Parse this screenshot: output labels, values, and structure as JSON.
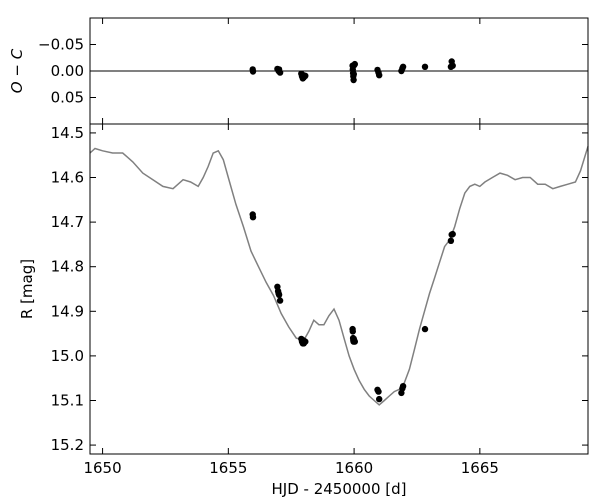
{
  "chart_data": [
    {
      "panel": "top",
      "type": "scatter",
      "title": "",
      "xlabel": "",
      "ylabel": "O − C",
      "xlim": [
        1649.5,
        1669.3
      ],
      "ylim": [
        0.1,
        -0.1
      ],
      "y_inverted": true,
      "yticks": [
        -0.05,
        0.0,
        0.05
      ],
      "ytick_labels": [
        "−0.05",
        "0.00",
        "0.05"
      ],
      "x_tick_labels_shown": false,
      "reference_line": {
        "y": 0.0
      },
      "grid": false,
      "legend": "none",
      "series": [
        {
          "marker_color": "#000000",
          "points": [
            [
              1655.97,
              -0.003
            ],
            [
              1655.98,
              0.001
            ],
            [
              1656.95,
              -0.004
            ],
            [
              1656.98,
              -0.002
            ],
            [
              1657.0,
              0.0
            ],
            [
              1657.02,
              -0.003
            ],
            [
              1657.06,
              0.003
            ],
            [
              1657.9,
              0.005
            ],
            [
              1657.93,
              0.01
            ],
            [
              1657.96,
              0.014
            ],
            [
              1657.98,
              0.008
            ],
            [
              1658.0,
              0.012
            ],
            [
              1658.02,
              0.01
            ],
            [
              1658.06,
              0.009
            ],
            [
              1659.94,
              -0.01
            ],
            [
              1659.95,
              -0.003
            ],
            [
              1659.96,
              0.004
            ],
            [
              1659.97,
              0.01
            ],
            [
              1659.98,
              0.017
            ],
            [
              1659.99,
              0.006
            ],
            [
              1660.0,
              -0.011
            ],
            [
              1660.03,
              -0.013
            ],
            [
              1660.93,
              -0.002
            ],
            [
              1660.97,
              0.003
            ],
            [
              1661.0,
              0.008
            ],
            [
              1661.88,
              0.0
            ],
            [
              1661.92,
              -0.005
            ],
            [
              1661.95,
              -0.008
            ],
            [
              1662.82,
              -0.008
            ],
            [
              1663.85,
              -0.008
            ],
            [
              1663.88,
              -0.018
            ],
            [
              1663.92,
              -0.01
            ]
          ]
        }
      ]
    },
    {
      "panel": "bottom",
      "type": "line",
      "title": "",
      "xlabel": "HJD - 2450000 [d]",
      "ylabel": "R [mag]",
      "xlim": [
        1649.5,
        1669.3
      ],
      "ylim": [
        15.22,
        14.48
      ],
      "y_inverted": true,
      "xticks": [
        1650,
        1655,
        1660,
        1665
      ],
      "xtick_labels": [
        "1650",
        "1655",
        "1660",
        "1665"
      ],
      "yticks": [
        14.5,
        14.6,
        14.7,
        14.8,
        14.9,
        15.0,
        15.1,
        15.2
      ],
      "ytick_labels": [
        "14.5",
        "14.6",
        "14.7",
        "14.8",
        "14.9",
        "15.0",
        "15.1",
        "15.2"
      ],
      "grid": false,
      "legend": "none",
      "series": [
        {
          "kind": "model-curve",
          "color": "#808080",
          "x": [
            1649.5,
            1649.7,
            1650.0,
            1650.4,
            1650.8,
            1651.2,
            1651.6,
            1652.0,
            1652.4,
            1652.8,
            1653.2,
            1653.5,
            1653.8,
            1654.0,
            1654.2,
            1654.4,
            1654.6,
            1654.8,
            1655.0,
            1655.3,
            1655.6,
            1655.9,
            1656.2,
            1656.5,
            1656.8,
            1657.1,
            1657.4,
            1657.7,
            1658.0,
            1658.2,
            1658.4,
            1658.6,
            1658.8,
            1659.0,
            1659.2,
            1659.4,
            1659.6,
            1659.8,
            1660.0,
            1660.2,
            1660.4,
            1660.6,
            1660.8,
            1661.0,
            1661.2,
            1661.4,
            1661.6,
            1661.8,
            1662.0,
            1662.2,
            1662.4,
            1662.6,
            1662.8,
            1663.0,
            1663.2,
            1663.4,
            1663.6,
            1663.8,
            1664.0,
            1664.2,
            1664.4,
            1664.6,
            1664.8,
            1665.0,
            1665.2,
            1665.5,
            1665.8,
            1666.1,
            1666.4,
            1666.7,
            1667.0,
            1667.3,
            1667.6,
            1667.9,
            1668.2,
            1668.5,
            1668.8,
            1669.0,
            1669.3
          ],
          "y": [
            14.545,
            14.535,
            14.54,
            14.545,
            14.545,
            14.565,
            14.59,
            14.605,
            14.62,
            14.625,
            14.605,
            14.61,
            14.62,
            14.6,
            14.575,
            14.545,
            14.54,
            14.56,
            14.6,
            14.66,
            14.71,
            14.765,
            14.8,
            14.835,
            14.865,
            14.905,
            14.935,
            14.96,
            14.965,
            14.945,
            14.92,
            14.93,
            14.93,
            14.91,
            14.895,
            14.92,
            14.96,
            15.0,
            15.03,
            15.055,
            15.075,
            15.09,
            15.1,
            15.11,
            15.1,
            15.09,
            15.08,
            15.075,
            15.06,
            15.03,
            14.985,
            14.94,
            14.9,
            14.86,
            14.825,
            14.79,
            14.755,
            14.74,
            14.71,
            14.67,
            14.635,
            14.62,
            14.615,
            14.62,
            14.61,
            14.6,
            14.59,
            14.595,
            14.605,
            14.6,
            14.6,
            14.615,
            14.615,
            14.625,
            14.62,
            14.615,
            14.61,
            14.585,
            14.53
          ]
        },
        {
          "kind": "observations",
          "marker_color": "#000000",
          "points": [
            [
              1655.97,
              14.683
            ],
            [
              1655.98,
              14.689
            ],
            [
              1656.95,
              14.845
            ],
            [
              1656.98,
              14.855
            ],
            [
              1657.0,
              14.86
            ],
            [
              1657.02,
              14.863
            ],
            [
              1657.06,
              14.876
            ],
            [
              1657.9,
              14.962
            ],
            [
              1657.93,
              14.968
            ],
            [
              1657.96,
              14.972
            ],
            [
              1657.98,
              14.965
            ],
            [
              1658.0,
              14.972
            ],
            [
              1658.02,
              14.97
            ],
            [
              1658.06,
              14.968
            ],
            [
              1659.94,
              14.94
            ],
            [
              1659.95,
              14.945
            ],
            [
              1659.96,
              14.96
            ],
            [
              1659.97,
              14.965
            ],
            [
              1659.98,
              14.968
            ],
            [
              1659.99,
              14.962
            ],
            [
              1660.0,
              14.965
            ],
            [
              1660.03,
              14.968
            ],
            [
              1660.93,
              15.076
            ],
            [
              1660.97,
              15.08
            ],
            [
              1661.0,
              15.097
            ],
            [
              1661.88,
              15.083
            ],
            [
              1661.92,
              15.073
            ],
            [
              1661.95,
              15.068
            ],
            [
              1662.82,
              14.94
            ],
            [
              1663.85,
              14.742
            ],
            [
              1663.88,
              14.728
            ],
            [
              1663.92,
              14.727
            ]
          ]
        }
      ]
    }
  ]
}
